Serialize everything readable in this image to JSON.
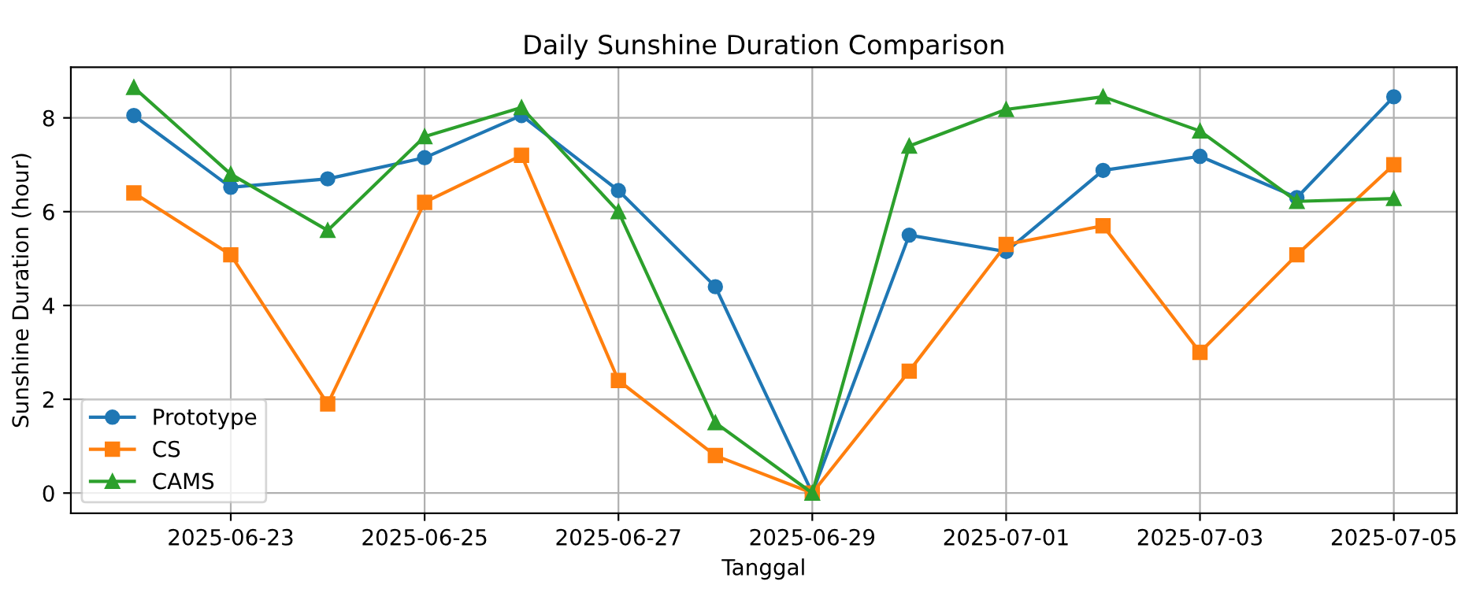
{
  "chart_data": {
    "type": "line",
    "title": "Daily Sunshine Duration Comparison",
    "xlabel": "Tanggal",
    "ylabel": "Sunshine Duration (hour)",
    "x": [
      "2025-06-22",
      "2025-06-23",
      "2025-06-24",
      "2025-06-25",
      "2025-06-26",
      "2025-06-27",
      "2025-06-28",
      "2025-06-29",
      "2025-06-30",
      "2025-07-01",
      "2025-07-02",
      "2025-07-03",
      "2025-07-04",
      "2025-07-05"
    ],
    "series": [
      {
        "name": "Prototype",
        "color": "#1f77b4",
        "marker": "circle",
        "values": [
          8.05,
          6.52,
          6.7,
          7.15,
          8.05,
          6.45,
          4.4,
          0,
          5.5,
          5.15,
          6.88,
          7.18,
          6.3,
          8.45
        ]
      },
      {
        "name": "CS",
        "color": "#ff7f0e",
        "marker": "square",
        "values": [
          6.4,
          5.08,
          1.9,
          6.2,
          7.2,
          2.4,
          0.8,
          0,
          2.6,
          5.3,
          5.7,
          3.0,
          5.08,
          7.0
        ]
      },
      {
        "name": "CAMS",
        "color": "#2ca02c",
        "marker": "triangle",
        "values": [
          8.65,
          6.8,
          5.6,
          7.6,
          8.22,
          6.0,
          1.5,
          0,
          7.4,
          8.18,
          8.45,
          7.72,
          6.22,
          6.28
        ]
      }
    ],
    "xlim": [
      "2025-06-21T08:24",
      "2025-07-05T15:36"
    ],
    "xticks": [
      "2025-06-23",
      "2025-06-25",
      "2025-06-27",
      "2025-06-29",
      "2025-07-01",
      "2025-07-03",
      "2025-07-05"
    ],
    "ylim": [
      -0.43,
      9.08
    ],
    "yticks": [
      0,
      2,
      4,
      6,
      8
    ],
    "grid": true,
    "legend": "bottom left",
    "line_style": "solid"
  }
}
